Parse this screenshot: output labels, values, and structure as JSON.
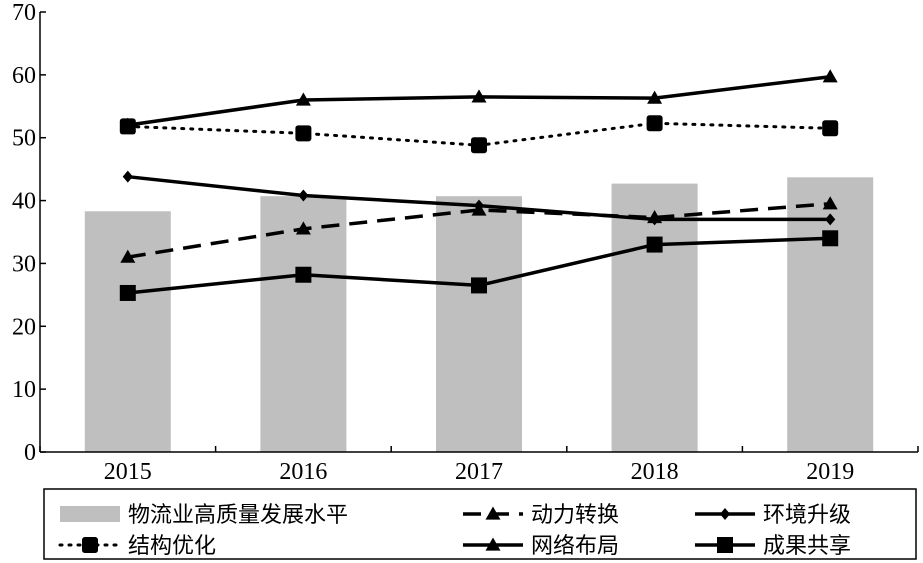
{
  "chart_data": {
    "type": "bar",
    "categories": [
      "2015",
      "2016",
      "2017",
      "2018",
      "2019"
    ],
    "ylim": [
      0,
      70
    ],
    "yticks": [
      "0",
      "10",
      "20",
      "30",
      "40",
      "50",
      "60",
      "70"
    ],
    "grid": false,
    "legend_position": "bottom",
    "series": [
      {
        "name": "物流业高质量发展水平",
        "type": "bar",
        "values": [
          38.3,
          40.7,
          40.7,
          42.7,
          43.7
        ],
        "color": "#bfbfbf"
      },
      {
        "name": "动力转换",
        "type": "line",
        "marker": "triangle",
        "dash": "dashed",
        "values": [
          31.0,
          35.5,
          38.5,
          37.3,
          39.5
        ],
        "color": "#000000"
      },
      {
        "name": "环境升级",
        "type": "line",
        "marker": "diamond",
        "dash": "solid",
        "values": [
          43.8,
          40.8,
          39.2,
          37.0,
          37.0
        ],
        "color": "#000000"
      },
      {
        "name": "结构优化",
        "type": "line",
        "marker": "circle",
        "dash": "dotted",
        "values": [
          51.8,
          50.7,
          48.8,
          52.3,
          51.5
        ],
        "color": "#000000"
      },
      {
        "name": "网络布局",
        "type": "line",
        "marker": "triangle",
        "dash": "solid",
        "values": [
          52.0,
          56.0,
          56.5,
          56.3,
          59.7
        ],
        "color": "#000000"
      },
      {
        "name": "成果共享",
        "type": "line",
        "marker": "square",
        "dash": "solid",
        "values": [
          25.3,
          28.2,
          26.5,
          33.0,
          34.0
        ],
        "color": "#000000"
      }
    ]
  }
}
